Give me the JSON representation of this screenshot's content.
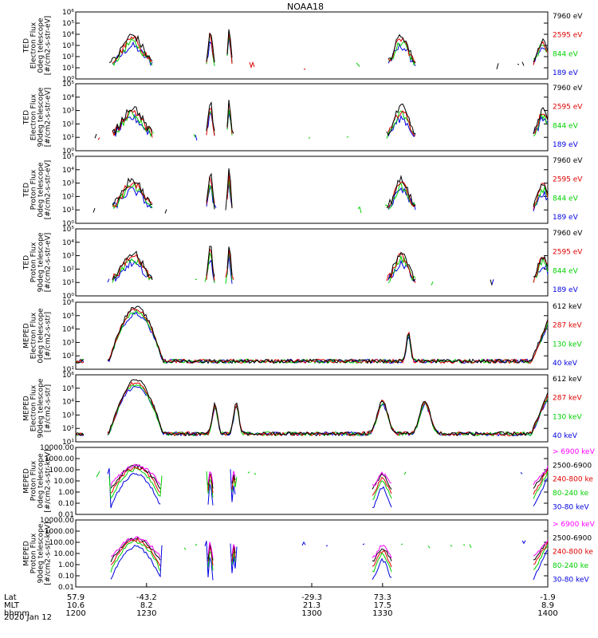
{
  "title": "NOAA18",
  "date": "2020 Jan 12",
  "colors": {
    "black": "#000000",
    "red": "#e00000",
    "green": "#00d000",
    "blue": "#0000e0",
    "magenta": "#ff00ff"
  },
  "chart_data": {
    "type": "line",
    "x_axis": {
      "rows": [
        {
          "label": "Lat",
          "values": [
            "57.9",
            "-43.2",
            "-29.3",
            "73.3",
            "-1.9"
          ]
        },
        {
          "label": "MLT",
          "values": [
            "10.6",
            "8.2",
            "21.3",
            "17.5",
            "8.9"
          ]
        },
        {
          "label": "hhmm",
          "values": [
            "1200",
            "1230",
            "1300",
            "1330",
            "1400"
          ]
        }
      ],
      "range": [
        1200,
        1400
      ]
    },
    "panels": [
      {
        "ylabel": [
          "TED",
          "Electron Flux",
          "0deg telescope",
          "[#/cm2-s-str-eV]"
        ],
        "y_ticks": [
          "10⁰",
          "10¹",
          "10²",
          "10³",
          "10⁴",
          "10⁵",
          "10⁶"
        ],
        "log_range": [
          0,
          6
        ],
        "legend": [
          {
            "name": "7960 eV",
            "color": "#000000"
          },
          {
            "name": "2595 eV",
            "color": "#e00000"
          },
          {
            "name": "844 eV",
            "color": "#00d000"
          },
          {
            "name": "189 eV",
            "color": "#0000e0"
          }
        ]
      },
      {
        "ylabel": [
          "TED",
          "Electron Flux",
          "90deg telescope",
          "[#/cm2-s-str-eV]"
        ],
        "y_ticks": [
          "10⁰",
          "10¹",
          "10²",
          "10³",
          "10⁴",
          "10⁵"
        ],
        "log_range": [
          0,
          5
        ],
        "legend": [
          {
            "name": "7960 eV",
            "color": "#000000"
          },
          {
            "name": "2595 eV",
            "color": "#e00000"
          },
          {
            "name": "844 eV",
            "color": "#00d000"
          },
          {
            "name": "189 eV",
            "color": "#0000e0"
          }
        ]
      },
      {
        "ylabel": [
          "TED",
          "Proton Flux",
          "0deg telescope",
          "[#/cm2-s-str-eV]"
        ],
        "y_ticks": [
          "10⁰",
          "10¹",
          "10²",
          "10³",
          "10⁴",
          "10⁵"
        ],
        "log_range": [
          0,
          5
        ],
        "legend": [
          {
            "name": "7960 eV",
            "color": "#000000"
          },
          {
            "name": "2595 eV",
            "color": "#e00000"
          },
          {
            "name": "844 eV",
            "color": "#00d000"
          },
          {
            "name": "189 eV",
            "color": "#0000e0"
          }
        ]
      },
      {
        "ylabel": [
          "TED",
          "Proton Flux",
          "90deg telescope",
          "[#/cm2-s-str-eV]"
        ],
        "y_ticks": [
          "10⁰",
          "10¹",
          "10²",
          "10³",
          "10⁴",
          "10⁵"
        ],
        "log_range": [
          0,
          5
        ],
        "legend": [
          {
            "name": "7960 eV",
            "color": "#000000"
          },
          {
            "name": "2595 eV",
            "color": "#e00000"
          },
          {
            "name": "844 eV",
            "color": "#00d000"
          },
          {
            "name": "189 eV",
            "color": "#0000e0"
          }
        ]
      },
      {
        "ylabel": [
          "MEPED",
          "Electron Flux",
          "0deg telescope",
          "[#/cm2-s-str]"
        ],
        "y_ticks": [
          "10¹",
          "10²",
          "10³",
          "10⁴",
          "10⁵",
          "10⁶"
        ],
        "log_range": [
          1,
          6
        ],
        "legend": [
          {
            "name": "612 keV",
            "color": "#000000"
          },
          {
            "name": "287 keV",
            "color": "#e00000"
          },
          {
            "name": "130 keV",
            "color": "#00d000"
          },
          {
            "name": "40 keV",
            "color": "#0000e0"
          }
        ]
      },
      {
        "ylabel": [
          "MEPED",
          "Electron Flux",
          "90deg telescope",
          "[#/cm2-s-str]"
        ],
        "y_ticks": [
          "10¹",
          "10²",
          "10³",
          "10⁴",
          "10⁵",
          "10⁶"
        ],
        "log_range": [
          1,
          6
        ],
        "legend": [
          {
            "name": "612 keV",
            "color": "#000000"
          },
          {
            "name": "287 keV",
            "color": "#e00000"
          },
          {
            "name": "130 keV",
            "color": "#00d000"
          },
          {
            "name": "40 keV",
            "color": "#0000e0"
          }
        ]
      },
      {
        "ylabel": [
          "MEPED",
          "Proton Flux",
          "0deg telescope",
          "[#/cm2-s-str-keV]"
        ],
        "y_ticks": [
          "0.01",
          "0.10",
          "1.00",
          "10.00",
          "100.00",
          "1000.00",
          "10000.00"
        ],
        "log_range": [
          -2,
          4
        ],
        "legend": [
          {
            "name": "> 6900 keV",
            "color": "#ff00ff"
          },
          {
            "name": "2500-6900",
            "color": "#000000"
          },
          {
            "name": "240-800 ke",
            "color": "#e00000"
          },
          {
            "name": "80-240 ke",
            "color": "#00d000"
          },
          {
            "name": "30-80 keV",
            "color": "#0000e0"
          }
        ]
      },
      {
        "ylabel": [
          "MEPED",
          "Proton Flux",
          "90deg telescope",
          "[#/cm2-s-str-keV]"
        ],
        "y_ticks": [
          "0.01",
          "0.10",
          "1.00",
          "10.00",
          "100.00",
          "1000.00",
          "10000.00"
        ],
        "log_range": [
          -2,
          4
        ],
        "legend": [
          {
            "name": "> 6900 keV",
            "color": "#ff00ff"
          },
          {
            "name": "2500-6900",
            "color": "#000000"
          },
          {
            "name": "240-800 ke",
            "color": "#e00000"
          },
          {
            "name": "80-240 ke",
            "color": "#00d000"
          },
          {
            "name": "30-80 keV",
            "color": "#0000e0"
          }
        ]
      }
    ]
  }
}
